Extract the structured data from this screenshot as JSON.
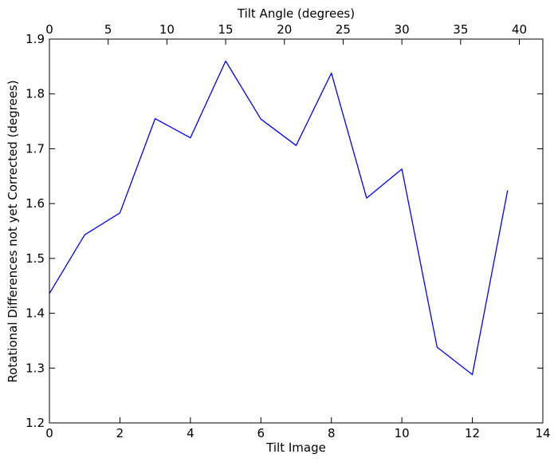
{
  "chart_data": {
    "type": "line",
    "title": "",
    "xlabel": "Tilt Image",
    "ylabel": "Rotational Differences not yet Corrected (degrees)",
    "x2label": "Tilt Angle (degrees)",
    "xlim": [
      0,
      14
    ],
    "ylim": [
      1.2,
      1.9
    ],
    "x2lim": [
      0,
      42
    ],
    "xticks": [
      0,
      2,
      4,
      6,
      8,
      10,
      12,
      14
    ],
    "yticks": [
      1.2,
      1.3,
      1.4,
      1.5,
      1.6,
      1.7,
      1.8,
      1.9
    ],
    "x2ticks": [
      0,
      5,
      10,
      15,
      20,
      25,
      30,
      35,
      40
    ],
    "grid": false,
    "series": [
      {
        "color": "#0000ff",
        "x": [
          0,
          1,
          2,
          3,
          4,
          5,
          6,
          7,
          8,
          9,
          10,
          11,
          12,
          13
        ],
        "values": [
          1.436,
          1.543,
          1.583,
          1.755,
          1.72,
          1.86,
          1.754,
          1.706,
          1.838,
          1.61,
          1.663,
          1.338,
          1.288,
          1.624
        ]
      }
    ]
  }
}
